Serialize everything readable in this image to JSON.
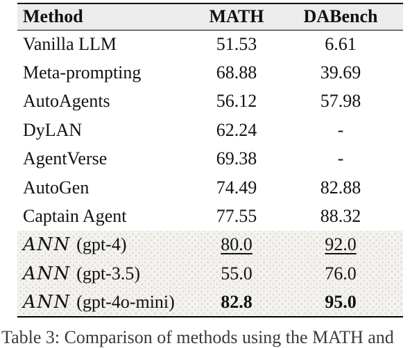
{
  "table": {
    "columns": [
      {
        "label": "Method"
      },
      {
        "label": "MATH"
      },
      {
        "label": "DABench"
      }
    ],
    "rows": [
      {
        "script": "",
        "method": "Vanilla LLM",
        "math": "51.53",
        "dabench": "6.61",
        "emphasis": "none",
        "highlight": false
      },
      {
        "script": "",
        "method": "Meta-prompting",
        "math": "68.88",
        "dabench": "39.69",
        "emphasis": "none",
        "highlight": false
      },
      {
        "script": "",
        "method": "AutoAgents",
        "math": "56.12",
        "dabench": "57.98",
        "emphasis": "none",
        "highlight": false
      },
      {
        "script": "",
        "method": "DyLAN",
        "math": "62.24",
        "dabench": "-",
        "emphasis": "none",
        "highlight": false
      },
      {
        "script": "",
        "method": "AgentVerse",
        "math": "69.38",
        "dabench": "-",
        "emphasis": "none",
        "highlight": false
      },
      {
        "script": "",
        "method": "AutoGen",
        "math": "74.49",
        "dabench": "82.88",
        "emphasis": "none",
        "highlight": false
      },
      {
        "script": "",
        "method": "Captain Agent",
        "math": "77.55",
        "dabench": "88.32",
        "emphasis": "none",
        "highlight": false
      },
      {
        "script": "ANN",
        "method": "(gpt-4)",
        "math": "80.0",
        "dabench": "92.0",
        "emphasis": "underline",
        "highlight": true
      },
      {
        "script": "ANN",
        "method": "(gpt-3.5)",
        "math": "55.0",
        "dabench": "76.0",
        "emphasis": "none",
        "highlight": true
      },
      {
        "script": "ANN",
        "method": "(gpt-4o-mini)",
        "math": "82.8",
        "dabench": "95.0",
        "emphasis": "bold",
        "highlight": true
      }
    ]
  },
  "caption": {
    "text": "Table 3: Comparison of methods using the MATH and"
  },
  "colors": {
    "header_bg": "#ececec",
    "highlight_bg": "#f4f2ee",
    "highlight_dot": "#d8d5cf",
    "rule": "#000000",
    "text": "#111111"
  }
}
